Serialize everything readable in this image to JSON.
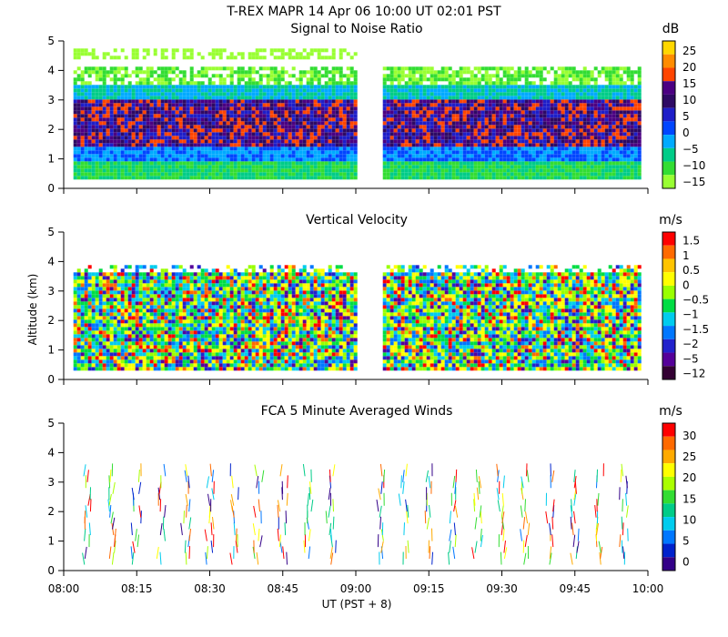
{
  "header": {
    "title": "T-REX   MAPR 14 Apr 06   10:00 UT   02:01   PST"
  },
  "x_axis": {
    "label": "UT  (PST + 8)",
    "ticks": [
      "08:00",
      "08:15",
      "08:30",
      "08:45",
      "09:00",
      "09:15",
      "09:30",
      "09:45",
      "10:00"
    ],
    "range_minutes": [
      0,
      120
    ]
  },
  "y_axis_label": "Altitude (km)",
  "chart_data": [
    {
      "type": "heatmap",
      "title": "Signal to Noise Ratio",
      "units": "dB",
      "ylim": [
        0,
        5
      ],
      "yticks": [
        "0",
        "1",
        "2",
        "3",
        "4",
        "5"
      ],
      "colorbar_ticks": [
        "25",
        "20",
        "15",
        "10",
        "5",
        "0",
        "−5",
        "−10",
        "−15"
      ],
      "colorbar_colors": [
        "#ffd700",
        "#ff8c00",
        "#ff4500",
        "#4b0082",
        "#2e0a64",
        "#1e1ec8",
        "#0046ff",
        "#00aaff",
        "#00cc88",
        "#33dd33",
        "#99ff33"
      ],
      "data_gap_ut": [
        "09:00",
        "09:05"
      ],
      "data_coverage_altitude_km": [
        0.3,
        4.7
      ]
    },
    {
      "type": "heatmap",
      "title": "Vertical Velocity",
      "units": "m/s",
      "ylim": [
        0,
        5
      ],
      "yticks": [
        "0",
        "1",
        "2",
        "3",
        "4",
        "5"
      ],
      "colorbar_ticks": [
        "1.5",
        "1",
        "0.5",
        "0",
        "−0.5",
        "−1",
        "−1.5",
        "−2",
        "−5",
        "−12"
      ],
      "colorbar_colors": [
        "#ff0000",
        "#ff6a00",
        "#ffc400",
        "#ffff00",
        "#99ff00",
        "#00dd44",
        "#00ccee",
        "#0077ff",
        "#2222cc",
        "#550099",
        "#330033"
      ],
      "data_gap_ut": [
        "09:00",
        "09:05"
      ],
      "data_coverage_altitude_km": [
        0.3,
        3.8
      ]
    },
    {
      "type": "wind_barbs",
      "title": "FCA 5 Minute Averaged Winds",
      "units": "m/s",
      "ylim": [
        0,
        5
      ],
      "yticks": [
        "0",
        "1",
        "2",
        "3",
        "4",
        "5"
      ],
      "colorbar_ticks": [
        "30",
        "25",
        "20",
        "15",
        "10",
        "5",
        "0"
      ],
      "colorbar_colors": [
        "#ff0000",
        "#ff6a00",
        "#ffaa00",
        "#ffff00",
        "#aaff00",
        "#33dd33",
        "#00cc88",
        "#00ccee",
        "#0077ff",
        "#0022cc",
        "#330088"
      ],
      "interval_minutes": 5,
      "altitude_range_km": [
        0.2,
        3.3
      ]
    }
  ]
}
